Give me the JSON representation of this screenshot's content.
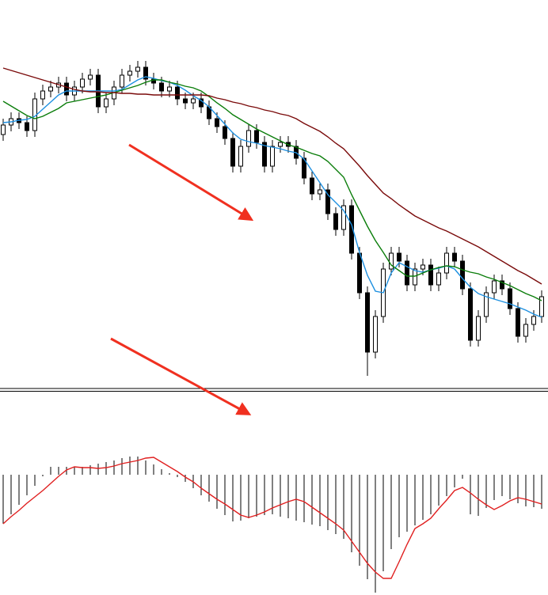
{
  "chart_data": [
    {
      "type": "candlestick",
      "ylim": [
        10,
        500
      ],
      "up_color": "#ffffff",
      "down_color": "#000000",
      "edge_color": "#000000",
      "open": [
        330,
        342,
        350,
        345,
        335,
        375,
        385,
        390,
        395,
        380,
        390,
        400,
        405,
        365,
        375,
        390,
        405,
        410,
        415,
        400,
        395,
        385,
        390,
        375,
        370,
        375,
        365,
        350,
        340,
        325,
        290,
        315,
        335,
        320,
        290,
        315,
        320,
        315,
        300,
        275,
        255,
        260,
        230,
        210,
        240,
        180,
        130,
        55,
        100,
        160,
        180,
        170,
        140,
        160,
        165,
        140,
        155,
        180,
        170,
        135,
        70,
        100,
        130,
        145,
        135,
        110,
        75,
        90,
        100
      ],
      "high": [
        350,
        358,
        358,
        353,
        383,
        393,
        398,
        403,
        403,
        398,
        408,
        413,
        413,
        383,
        398,
        413,
        418,
        423,
        423,
        408,
        403,
        398,
        398,
        383,
        383,
        383,
        373,
        358,
        348,
        333,
        323,
        343,
        343,
        328,
        323,
        328,
        328,
        323,
        308,
        283,
        268,
        268,
        238,
        248,
        248,
        188,
        138,
        108,
        168,
        188,
        188,
        178,
        168,
        173,
        173,
        163,
        188,
        188,
        178,
        143,
        108,
        138,
        153,
        153,
        143,
        118,
        98,
        108,
        133
      ],
      "low": [
        322,
        334,
        337,
        327,
        327,
        367,
        377,
        382,
        372,
        372,
        382,
        392,
        357,
        357,
        367,
        382,
        397,
        402,
        392,
        387,
        377,
        377,
        367,
        362,
        362,
        357,
        342,
        332,
        317,
        282,
        282,
        307,
        312,
        282,
        282,
        307,
        307,
        292,
        267,
        247,
        247,
        222,
        202,
        202,
        172,
        122,
        25,
        47,
        92,
        152,
        162,
        132,
        132,
        152,
        132,
        132,
        147,
        162,
        127,
        62,
        62,
        92,
        122,
        127,
        102,
        67,
        67,
        82,
        92
      ],
      "close": [
        342,
        350,
        345,
        335,
        375,
        385,
        390,
        395,
        380,
        390,
        400,
        405,
        365,
        375,
        390,
        405,
        410,
        415,
        400,
        395,
        385,
        390,
        375,
        370,
        375,
        365,
        350,
        340,
        325,
        290,
        315,
        335,
        320,
        290,
        315,
        320,
        315,
        300,
        275,
        255,
        260,
        230,
        210,
        240,
        180,
        130,
        55,
        100,
        160,
        180,
        170,
        140,
        160,
        165,
        140,
        155,
        180,
        170,
        135,
        70,
        100,
        130,
        145,
        135,
        110,
        75,
        90,
        100,
        125
      ],
      "series": [
        {
          "color": "#1e90e0",
          "values": [
            345,
            346,
            348,
            349,
            353,
            362,
            371,
            380,
            385,
            385,
            385,
            385,
            385,
            385,
            385,
            387,
            393,
            399,
            403,
            401,
            398,
            396,
            392,
            386,
            379,
            373,
            365,
            354,
            343,
            332,
            324,
            321,
            319,
            316,
            314,
            312,
            309,
            307,
            299,
            284,
            269,
            254,
            244,
            234,
            216,
            181,
            152,
            132,
            130,
            155,
            168,
            163,
            158,
            156,
            159,
            161,
            164,
            160,
            148,
            137,
            129,
            125,
            122,
            119,
            116,
            112,
            108,
            103,
            99
          ]
        },
        {
          "color": "#0a7d0a",
          "values": [
            372,
            366,
            360,
            354,
            350,
            353,
            358,
            363,
            370,
            372,
            374,
            376,
            378,
            380,
            383,
            386,
            389,
            392,
            396,
            399,
            399,
            396,
            394,
            391,
            389,
            385,
            378,
            370,
            363,
            355,
            349,
            343,
            337,
            332,
            327,
            322,
            317,
            314,
            310,
            306,
            303,
            296,
            286,
            276,
            254,
            234,
            214,
            196,
            181,
            165,
            158,
            151,
            151,
            155,
            159,
            162,
            164,
            163,
            159,
            156,
            154,
            150,
            147,
            143,
            139,
            134,
            129,
            125,
            120
          ]
        },
        {
          "color": "#7a0a0a",
          "values": [
            414,
            411,
            408,
            405,
            402,
            399,
            396,
            393,
            390,
            387,
            385,
            384,
            384,
            383,
            383,
            382,
            382,
            381,
            381,
            380,
            380,
            380,
            380,
            380,
            380,
            380,
            379,
            376,
            374,
            371,
            369,
            366,
            364,
            361,
            359,
            356,
            354,
            350,
            344,
            339,
            334,
            327,
            319,
            312,
            301,
            290,
            278,
            267,
            256,
            249,
            241,
            234,
            227,
            222,
            217,
            212,
            208,
            203,
            198,
            193,
            188,
            182,
            176,
            170,
            164,
            158,
            153,
            147,
            141
          ]
        }
      ]
    },
    {
      "type": "macd",
      "ylim": [
        -152,
        30
      ],
      "color": "#000000",
      "values": [
        -62,
        -50,
        -38,
        -26,
        -14,
        -2,
        10,
        10,
        10,
        10,
        10,
        12,
        14,
        16,
        18,
        21,
        23,
        23,
        18,
        13,
        7,
        2,
        -3,
        -9,
        -17,
        -26,
        -34,
        -43,
        -51,
        -59,
        -58,
        -55,
        -53,
        -51,
        -50,
        -53,
        -55,
        -58,
        -60,
        -63,
        -65,
        -70,
        -75,
        -81,
        -98,
        -115,
        -132,
        -149,
        -122,
        -94,
        -79,
        -72,
        -64,
        -57,
        -50,
        -39,
        -27,
        -16,
        -5,
        -50,
        -52,
        -42,
        -32,
        -27,
        -31,
        -36,
        -40,
        -41,
        -43
      ],
      "series": [
        {
          "color": "#e02020",
          "values": [
            -62,
            -53,
            -45,
            -36,
            -28,
            -20,
            -11,
            -2,
            6,
            10,
            9,
            9,
            8,
            9,
            11,
            14,
            16,
            18,
            21,
            22,
            16,
            10,
            4,
            -3,
            -9,
            -17,
            -24,
            -31,
            -37,
            -44,
            -51,
            -54,
            -51,
            -47,
            -42,
            -38,
            -34,
            -31,
            -34,
            -41,
            -48,
            -55,
            -62,
            -70,
            -84,
            -98,
            -112,
            -123,
            -131,
            -131,
            -110,
            -88,
            -68,
            -62,
            -55,
            -43,
            -32,
            -20,
            -16,
            -23,
            -31,
            -38,
            -44,
            -39,
            -33,
            -29,
            -31,
            -34,
            -37
          ]
        }
      ]
    }
  ]
}
